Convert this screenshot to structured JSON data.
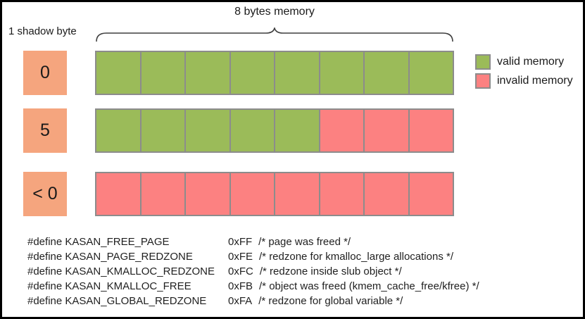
{
  "colors": {
    "valid": "#9BBB59",
    "invalid": "#FC8181",
    "shadow_box": "#F5A57E",
    "cell_border": "#8c8c8c",
    "text": "#1a1a1a"
  },
  "header": {
    "memory_label": "8 bytes memory",
    "shadow_label": "1 shadow byte"
  },
  "legend": [
    {
      "type": "valid",
      "label": "valid memory"
    },
    {
      "type": "invalid",
      "label": "invalid memory"
    }
  ],
  "rows": [
    {
      "shadow_value": "0",
      "cells": [
        "valid",
        "valid",
        "valid",
        "valid",
        "valid",
        "valid",
        "valid",
        "valid"
      ]
    },
    {
      "shadow_value": "5",
      "cells": [
        "valid",
        "valid",
        "valid",
        "valid",
        "valid",
        "invalid",
        "invalid",
        "invalid"
      ]
    },
    {
      "shadow_value": "< 0",
      "cells": [
        "invalid",
        "invalid",
        "invalid",
        "invalid",
        "invalid",
        "invalid",
        "invalid",
        "invalid"
      ]
    }
  ],
  "defines": [
    {
      "label": "#define KASAN_FREE_PAGE",
      "value": "0xFF",
      "comment": "/* page was freed */"
    },
    {
      "label": "#define KASAN_PAGE_REDZONE",
      "value": "0xFE",
      "comment": "/* redzone for kmalloc_large allocations */"
    },
    {
      "label": "#define KASAN_KMALLOC_REDZONE",
      "value": "0xFC",
      "comment": "/* redzone inside slub object */"
    },
    {
      "label": "#define KASAN_KMALLOC_FREE",
      "value": "0xFB",
      "comment": "/* object was freed (kmem_cache_free/kfree) */"
    },
    {
      "label": "#define KASAN_GLOBAL_REDZONE",
      "value": "0xFA",
      "comment": "/* redzone for global variable */"
    }
  ]
}
